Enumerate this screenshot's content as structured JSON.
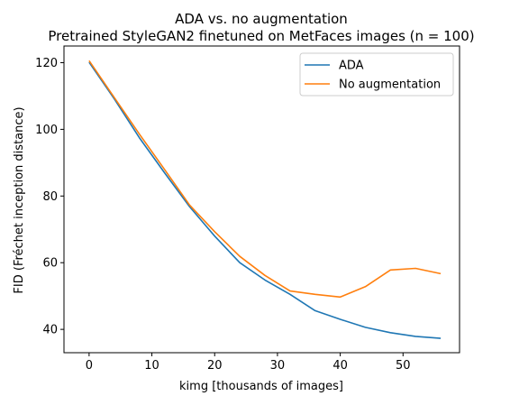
{
  "chart_data": {
    "type": "line",
    "title": "ADA vs. no augmentation",
    "subtitle": "Pretrained StyleGAN2 finetuned on MetFaces images (n = 100)",
    "xlabel": "kimg [thousands of images]",
    "ylabel": "FID (Fréchet inception distance)",
    "xlim": [
      -4,
      59
    ],
    "ylim": [
      33,
      125
    ],
    "xticks": [
      0,
      10,
      20,
      30,
      40,
      50
    ],
    "yticks": [
      40,
      60,
      80,
      100,
      120
    ],
    "grid": false,
    "legend_position": "top-right",
    "x": [
      0,
      4,
      8,
      12,
      16,
      20,
      24,
      28,
      32,
      36,
      40,
      44,
      48,
      52,
      56
    ],
    "series": [
      {
        "name": "ADA",
        "color": "#1f77b4",
        "values": [
          120.1,
          109.2,
          97.5,
          87.0,
          76.8,
          68.0,
          60.0,
          54.8,
          50.5,
          45.6,
          43.0,
          40.6,
          39.0,
          37.9,
          37.3
        ]
      },
      {
        "name": "No augmentation",
        "color": "#ff7f0e",
        "values": [
          120.6,
          109.6,
          98.6,
          88.0,
          77.3,
          69.3,
          61.9,
          56.2,
          51.5,
          50.5,
          49.7,
          52.8,
          57.8,
          58.3,
          56.7
        ]
      }
    ]
  }
}
